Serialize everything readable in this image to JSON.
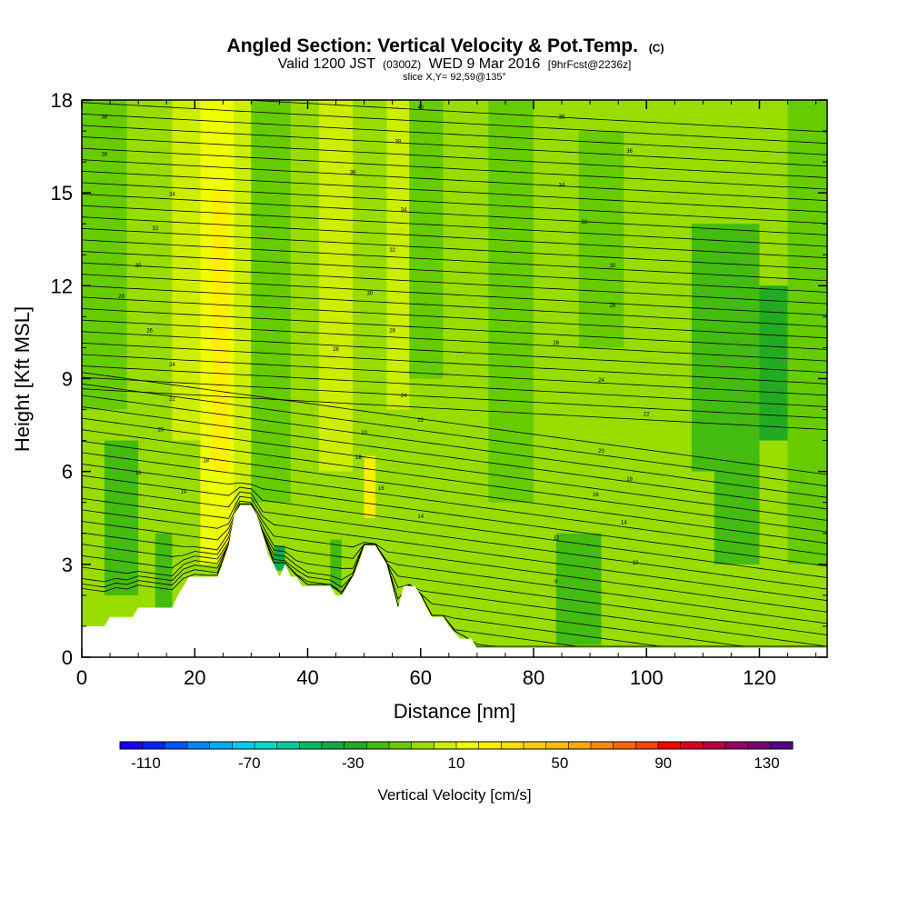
{
  "header": {
    "title": "Angled Section: Vertical Velocity & Pot.Temp.",
    "title_unit": "(C)",
    "valid_prefix": "Valid 1200 JST",
    "valid_utc": "(0300Z)",
    "valid_date": "WED 9 Mar 2016",
    "forecast": "[9hrFcst@2236z]",
    "slice": "slice X,Y= 92,59@135°"
  },
  "chart_data": {
    "type": "heatmap",
    "title": "Angled Section: Vertical Velocity & Pot.Temp.",
    "xlabel": "Distance [nm]",
    "ylabel": "Height [Kft MSL]",
    "xlim": [
      0,
      132
    ],
    "ylim": [
      0,
      18
    ],
    "x_ticks": [
      "0",
      "20",
      "40",
      "60",
      "80",
      "100",
      "120"
    ],
    "x_tick_values": [
      0,
      20,
      40,
      60,
      80,
      100,
      120
    ],
    "y_ticks": [
      "0",
      "3",
      "6",
      "9",
      "12",
      "15",
      "18"
    ],
    "y_tick_values": [
      0,
      3,
      6,
      9,
      12,
      15,
      18
    ],
    "colorbar": {
      "label": "Vertical Velocity [cm/s]",
      "range": [
        -120,
        140
      ],
      "step": 10,
      "tick_labels": [
        "-110",
        "-70",
        "-30",
        "10",
        "50",
        "90",
        "130"
      ],
      "tick_values": [
        -110,
        -70,
        -30,
        10,
        50,
        90,
        130
      ],
      "colors": [
        "#1a00ff",
        "#0022ff",
        "#0055ff",
        "#0088ff",
        "#00aaff",
        "#00ccee",
        "#00ddcc",
        "#00cc99",
        "#00bb66",
        "#11aa44",
        "#22aa22",
        "#44bb11",
        "#66cc00",
        "#99dd00",
        "#ccee00",
        "#eeff00",
        "#ffee00",
        "#ffdd00",
        "#ffcc00",
        "#ffbb00",
        "#ffaa00",
        "#ff8800",
        "#ff6600",
        "#ff4400",
        "#ff0000",
        "#dd0022",
        "#bb0044",
        "#990066",
        "#770077",
        "#550088"
      ]
    },
    "terrain_profile": [
      [
        0,
        1
      ],
      [
        1,
        1
      ],
      [
        2,
        1
      ],
      [
        3,
        1
      ],
      [
        4,
        1
      ],
      [
        5,
        1.3
      ],
      [
        6,
        1.3
      ],
      [
        7,
        1.3
      ],
      [
        8,
        1.3
      ],
      [
        9,
        1.3
      ],
      [
        10,
        1.6
      ],
      [
        11,
        1.6
      ],
      [
        12,
        1.6
      ],
      [
        13,
        1.6
      ],
      [
        14,
        1.6
      ],
      [
        15,
        1.6
      ],
      [
        16,
        1.6
      ],
      [
        17,
        2
      ],
      [
        18,
        2.3
      ],
      [
        19,
        2.6
      ],
      [
        20,
        2.6
      ],
      [
        21,
        2.6
      ],
      [
        22,
        2.6
      ],
      [
        23,
        2.6
      ],
      [
        24,
        2.6
      ],
      [
        25,
        3
      ],
      [
        26,
        3.6
      ],
      [
        27,
        4.6
      ],
      [
        28,
        4.9
      ],
      [
        29,
        4.9
      ],
      [
        30,
        4.9
      ],
      [
        31,
        4.6
      ],
      [
        32,
        4
      ],
      [
        33,
        3.3
      ],
      [
        34,
        3
      ],
      [
        35,
        2.6
      ],
      [
        36,
        3
      ],
      [
        37,
        2.6
      ],
      [
        38,
        2.6
      ],
      [
        39,
        2.3
      ],
      [
        40,
        2.3
      ],
      [
        41,
        2.3
      ],
      [
        42,
        2.3
      ],
      [
        43,
        2.3
      ],
      [
        44,
        2.3
      ],
      [
        45,
        2
      ],
      [
        46,
        2
      ],
      [
        47,
        2.3
      ],
      [
        48,
        2.6
      ],
      [
        49,
        3
      ],
      [
        50,
        3.6
      ],
      [
        51,
        3.6
      ],
      [
        52,
        3.6
      ],
      [
        53,
        3.3
      ],
      [
        54,
        3
      ],
      [
        55,
        2.3
      ],
      [
        56,
        1.6
      ],
      [
        57,
        2.3
      ],
      [
        58,
        2.3
      ],
      [
        59,
        2.3
      ],
      [
        60,
        2
      ],
      [
        61,
        1.6
      ],
      [
        62,
        1.3
      ],
      [
        63,
        1.3
      ],
      [
        64,
        1.3
      ],
      [
        65,
        1
      ],
      [
        66,
        0.8
      ],
      [
        67,
        0.6
      ],
      [
        68,
        0.6
      ],
      [
        69,
        0.6
      ],
      [
        70,
        0.3
      ],
      [
        71,
        0.3
      ],
      [
        72,
        0.3
      ],
      [
        73,
        0.3
      ],
      [
        74,
        0.3
      ],
      [
        75,
        0.3
      ],
      [
        132,
        0.3
      ]
    ],
    "isentrope_labels": [
      {
        "x": 4,
        "y": 17.4,
        "text": "38"
      },
      {
        "x": 4,
        "y": 16.2,
        "text": "36"
      },
      {
        "x": 16,
        "y": 14.9,
        "text": "34"
      },
      {
        "x": 13,
        "y": 13.8,
        "text": "32"
      },
      {
        "x": 10,
        "y": 12.6,
        "text": "30"
      },
      {
        "x": 7,
        "y": 11.6,
        "text": "28"
      },
      {
        "x": 12,
        "y": 10.5,
        "text": "26"
      },
      {
        "x": 16,
        "y": 9.4,
        "text": "24"
      },
      {
        "x": 16,
        "y": 8.3,
        "text": "22"
      },
      {
        "x": 14,
        "y": 7.3,
        "text": "20"
      },
      {
        "x": 22,
        "y": 6.3,
        "text": "18"
      },
      {
        "x": 10,
        "y": 5.9,
        "text": "16"
      },
      {
        "x": 18,
        "y": 5.3,
        "text": "14"
      },
      {
        "x": 60,
        "y": 17.7,
        "text": "40"
      },
      {
        "x": 56,
        "y": 16.6,
        "text": "38"
      },
      {
        "x": 48,
        "y": 15.6,
        "text": "36"
      },
      {
        "x": 57,
        "y": 14.4,
        "text": "34"
      },
      {
        "x": 55,
        "y": 13.1,
        "text": "32"
      },
      {
        "x": 51,
        "y": 11.7,
        "text": "30"
      },
      {
        "x": 55,
        "y": 10.5,
        "text": "28"
      },
      {
        "x": 45,
        "y": 9.9,
        "text": "26"
      },
      {
        "x": 57,
        "y": 8.4,
        "text": "24"
      },
      {
        "x": 60,
        "y": 7.6,
        "text": "22"
      },
      {
        "x": 50,
        "y": 7.2,
        "text": "20"
      },
      {
        "x": 49,
        "y": 6.4,
        "text": "18"
      },
      {
        "x": 53,
        "y": 5.4,
        "text": "16"
      },
      {
        "x": 60,
        "y": 4.5,
        "text": "14"
      },
      {
        "x": 85,
        "y": 17.4,
        "text": "38"
      },
      {
        "x": 97,
        "y": 16.3,
        "text": "36"
      },
      {
        "x": 85,
        "y": 15.2,
        "text": "34"
      },
      {
        "x": 89,
        "y": 14.0,
        "text": "32"
      },
      {
        "x": 94,
        "y": 12.6,
        "text": "30"
      },
      {
        "x": 94,
        "y": 11.3,
        "text": "28"
      },
      {
        "x": 84,
        "y": 10.1,
        "text": "26"
      },
      {
        "x": 92,
        "y": 8.9,
        "text": "24"
      },
      {
        "x": 100,
        "y": 7.8,
        "text": "22"
      },
      {
        "x": 92,
        "y": 6.6,
        "text": "20"
      },
      {
        "x": 97,
        "y": 5.7,
        "text": "18"
      },
      {
        "x": 91,
        "y": 5.2,
        "text": "16"
      },
      {
        "x": 96,
        "y": 4.3,
        "text": "14"
      },
      {
        "x": 84,
        "y": 3.8,
        "text": "12"
      },
      {
        "x": 98,
        "y": 3.0,
        "text": "10"
      },
      {
        "x": 84,
        "y": 2.4,
        "text": "8"
      }
    ]
  }
}
